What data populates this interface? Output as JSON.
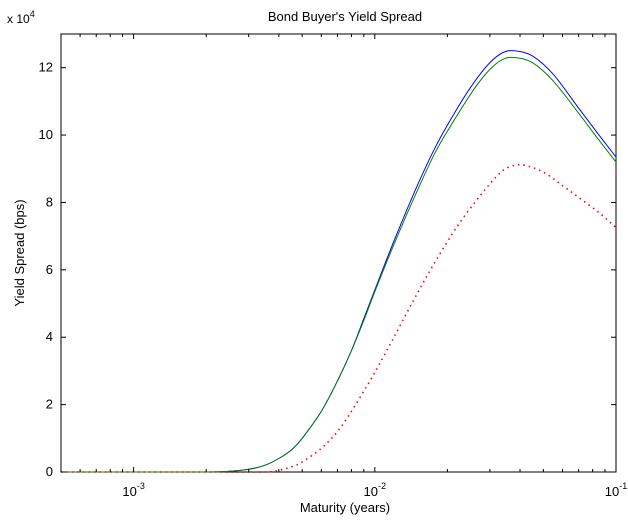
{
  "chart_data": {
    "type": "line",
    "title": "Bond Buyer's Yield Spread",
    "xlabel": "Maturity (years)",
    "ylabel": "Yield Spread (bps)",
    "x_scale": "log",
    "xlim": [
      0.0005,
      0.1
    ],
    "ylim": [
      0,
      130000
    ],
    "y_multiplier": {
      "base": "x 10",
      "exponent": "4"
    },
    "grid": false,
    "legend": "none",
    "x_ticks": [
      {
        "value": 0.001,
        "base": "10",
        "exp": "-3"
      },
      {
        "value": 0.01,
        "base": "10",
        "exp": "-2"
      },
      {
        "value": 0.1,
        "base": "10",
        "exp": "-1"
      }
    ],
    "y_ticks": [
      {
        "value": 0,
        "label": "0"
      },
      {
        "value": 20000,
        "label": "2"
      },
      {
        "value": 40000,
        "label": "4"
      },
      {
        "value": 60000,
        "label": "6"
      },
      {
        "value": 80000,
        "label": "8"
      },
      {
        "value": 100000,
        "label": "10"
      },
      {
        "value": 120000,
        "label": "12"
      }
    ],
    "series": [
      {
        "color": "#0000ff",
        "style": "solid",
        "x": [
          0.0005,
          0.001,
          0.002,
          0.0025,
          0.003,
          0.0035,
          0.004,
          0.0045,
          0.005,
          0.006,
          0.007,
          0.008,
          0.009,
          0.01,
          0.012,
          0.015,
          0.018,
          0.022,
          0.026,
          0.03,
          0.034,
          0.038,
          0.045,
          0.055,
          0.07,
          0.085,
          0.1
        ],
        "values": [
          0,
          0,
          0,
          200,
          800,
          2000,
          4000,
          6500,
          10000,
          18000,
          27000,
          36000,
          45500,
          54000,
          68500,
          85000,
          97000,
          108000,
          116000,
          121500,
          124500,
          125000,
          123500,
          118000,
          108000,
          100000,
          93500
        ]
      },
      {
        "color": "#008000",
        "style": "solid",
        "x": [
          0.0005,
          0.001,
          0.002,
          0.0025,
          0.003,
          0.0035,
          0.004,
          0.0045,
          0.005,
          0.006,
          0.007,
          0.008,
          0.009,
          0.01,
          0.012,
          0.015,
          0.018,
          0.022,
          0.026,
          0.03,
          0.034,
          0.038,
          0.045,
          0.055,
          0.07,
          0.085,
          0.1
        ],
        "values": [
          0,
          0,
          0,
          200,
          800,
          2000,
          4000,
          6500,
          10000,
          18000,
          27000,
          36000,
          45000,
          53500,
          67500,
          83500,
          95500,
          106000,
          114000,
          119500,
          122500,
          123000,
          121500,
          116000,
          106500,
          98500,
          92000
        ]
      },
      {
        "color": "#ff0000",
        "style": "dotted",
        "x": [
          0.0005,
          0.002,
          0.0035,
          0.004,
          0.0045,
          0.005,
          0.006,
          0.007,
          0.008,
          0.009,
          0.01,
          0.012,
          0.015,
          0.018,
          0.022,
          0.026,
          0.03,
          0.034,
          0.038,
          0.042,
          0.05,
          0.06,
          0.07,
          0.085,
          0.1
        ],
        "values": [
          0,
          0,
          0,
          500,
          1500,
          3000,
          7000,
          12000,
          18000,
          24000,
          29500,
          40000,
          53000,
          63000,
          73000,
          80000,
          85500,
          89500,
          91000,
          91000,
          89000,
          85000,
          81500,
          77000,
          72500
        ]
      }
    ]
  }
}
